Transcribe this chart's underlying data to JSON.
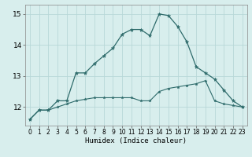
{
  "x": [
    0,
    1,
    2,
    3,
    4,
    5,
    6,
    7,
    8,
    9,
    10,
    11,
    12,
    13,
    14,
    15,
    16,
    17,
    18,
    19,
    20,
    21,
    22,
    23
  ],
  "line1": [
    11.6,
    11.9,
    11.9,
    12.2,
    12.2,
    13.1,
    13.1,
    13.4,
    13.65,
    13.9,
    14.35,
    14.5,
    14.5,
    14.3,
    15.0,
    14.95,
    14.6,
    14.1,
    13.3,
    13.1,
    12.9,
    12.55,
    12.2,
    12.0
  ],
  "line2": [
    11.6,
    11.9,
    11.9,
    12.0,
    12.1,
    12.2,
    12.25,
    12.3,
    12.3,
    12.3,
    12.3,
    12.3,
    12.2,
    12.2,
    12.5,
    12.6,
    12.65,
    12.7,
    12.75,
    12.85,
    12.2,
    12.1,
    12.05,
    12.0
  ],
  "color": "#2e6b6b",
  "bg_color": "#d8eeed",
  "grid_color": "#b8d8d8",
  "xlabel": "Humidex (Indice chaleur)",
  "yticks": [
    12,
    13,
    14,
    15
  ],
  "xticks": [
    0,
    1,
    2,
    3,
    4,
    5,
    6,
    7,
    8,
    9,
    10,
    11,
    12,
    13,
    14,
    15,
    16,
    17,
    18,
    19,
    20,
    21,
    22,
    23
  ],
  "ylim": [
    11.4,
    15.3
  ],
  "xlim": [
    -0.5,
    23.5
  ]
}
